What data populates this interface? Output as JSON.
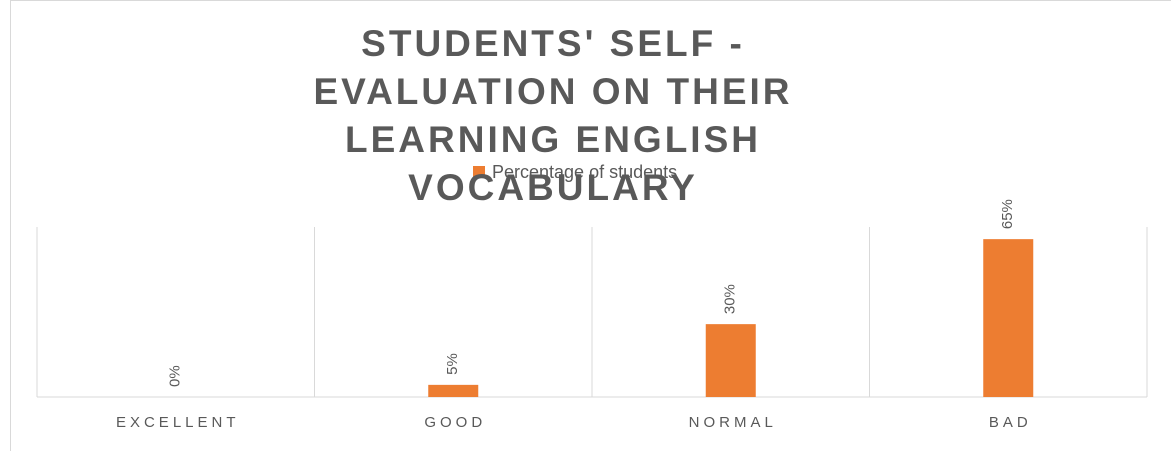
{
  "chart_data": {
    "type": "bar",
    "title": "STUDENTS' SELF - EVALUATION ON THEIR LEARNING ENGLISH VOCABULARY",
    "categories": [
      "EXCELLENT",
      "GOOD",
      "NORMAL",
      "BAD"
    ],
    "series": [
      {
        "name": "Percentage of students",
        "color": "#ed7d31",
        "values": [
          0,
          5,
          30,
          65
        ],
        "value_labels": [
          "0%",
          "5%",
          "30%",
          "65%"
        ]
      }
    ],
    "ylim": [
      0,
      70
    ],
    "legend": "top"
  }
}
